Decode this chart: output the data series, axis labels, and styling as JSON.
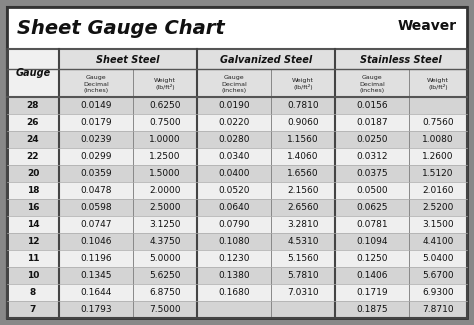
{
  "title": "Sheet Gauge Chart",
  "bg_outer": "#888888",
  "bg_white": "#ffffff",
  "bg_table": "#f2f2f2",
  "row_even": "#d8d8d8",
  "row_odd": "#f0f0f0",
  "header_bg": "#ffffff",
  "col_header_bg": "#c8c8c8",
  "gauges": [
    28,
    26,
    24,
    22,
    20,
    18,
    16,
    14,
    12,
    11,
    10,
    8,
    7
  ],
  "sheet_steel_decimal": [
    "0.0149",
    "0.0179",
    "0.0239",
    "0.0299",
    "0.0359",
    "0.0478",
    "0.0598",
    "0.0747",
    "0.1046",
    "0.1196",
    "0.1345",
    "0.1644",
    "0.1793"
  ],
  "sheet_steel_weight": [
    "0.6250",
    "0.7500",
    "1.0000",
    "1.2500",
    "1.5000",
    "2.0000",
    "2.5000",
    "3.1250",
    "4.3750",
    "5.0000",
    "5.6250",
    "6.8750",
    "7.5000"
  ],
  "galvanized_decimal": [
    "0.0190",
    "0.0220",
    "0.0280",
    "0.0340",
    "0.0400",
    "0.0520",
    "0.0640",
    "0.0790",
    "0.1080",
    "0.1230",
    "0.1380",
    "0.1680",
    ""
  ],
  "galvanized_weight": [
    "0.7810",
    "0.9060",
    "1.1560",
    "1.4060",
    "1.6560",
    "2.1560",
    "2.6560",
    "3.2810",
    "4.5310",
    "5.1560",
    "5.7810",
    "7.0310",
    ""
  ],
  "stainless_decimal": [
    "0.0156",
    "0.0187",
    "0.0250",
    "0.0312",
    "0.0375",
    "0.0500",
    "0.0625",
    "0.0781",
    "0.1094",
    "0.1250",
    "0.1406",
    "0.1719",
    "0.1875"
  ],
  "stainless_weight": [
    "",
    "0.7560",
    "1.0080",
    "1.2600",
    "1.5120",
    "2.0160",
    "2.5200",
    "3.1500",
    "4.4100",
    "5.0400",
    "5.6700",
    "6.9300",
    "7.8710"
  ],
  "fig_w": 4.74,
  "fig_h": 3.25,
  "dpi": 100
}
